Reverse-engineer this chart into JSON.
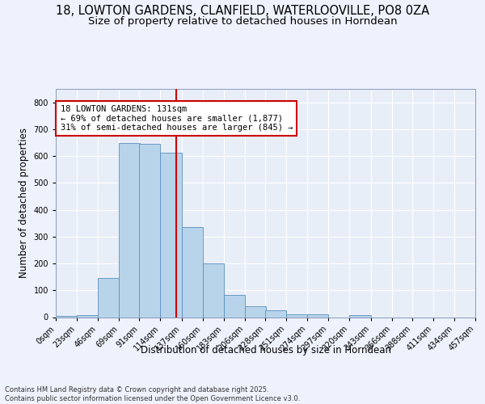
{
  "title_line1": "18, LOWTON GARDENS, CLANFIELD, WATERLOOVILLE, PO8 0ZA",
  "title_line2": "Size of property relative to detached houses in Horndean",
  "xlabel": "Distribution of detached houses by size in Horndean",
  "ylabel": "Number of detached properties",
  "bin_labels": [
    "0sqm",
    "23sqm",
    "46sqm",
    "69sqm",
    "91sqm",
    "114sqm",
    "137sqm",
    "160sqm",
    "183sqm",
    "206sqm",
    "228sqm",
    "251sqm",
    "274sqm",
    "297sqm",
    "320sqm",
    "343sqm",
    "366sqm",
    "388sqm",
    "411sqm",
    "434sqm",
    "457sqm"
  ],
  "bin_edges": [
    0,
    23,
    46,
    69,
    91,
    114,
    137,
    160,
    183,
    206,
    228,
    251,
    274,
    297,
    320,
    343,
    366,
    388,
    411,
    434,
    457
  ],
  "bar_heights": [
    6,
    8,
    145,
    648,
    645,
    612,
    335,
    200,
    84,
    40,
    25,
    10,
    12,
    0,
    8,
    0,
    0,
    0,
    0,
    0,
    4
  ],
  "bar_color": "#b8d4ea",
  "bar_edge_color": "#5a8fc0",
  "bg_color": "#e8eef8",
  "grid_color": "#ffffff",
  "annotation_text": "18 LOWTON GARDENS: 131sqm\n← 69% of detached houses are smaller (1,877)\n31% of semi-detached houses are larger (845) →",
  "annotation_box_color": "#ffffff",
  "annotation_box_edge": "#cc0000",
  "vline_color": "#cc0000",
  "vline_x": 131,
  "ylim": [
    0,
    850
  ],
  "yticks": [
    0,
    100,
    200,
    300,
    400,
    500,
    600,
    700,
    800
  ],
  "footnote": "Contains HM Land Registry data © Crown copyright and database right 2025.\nContains public sector information licensed under the Open Government Licence v3.0.",
  "title_fontsize": 10.5,
  "subtitle_fontsize": 9.5,
  "axis_label_fontsize": 8.5,
  "tick_fontsize": 7,
  "annotation_fontsize": 7.5,
  "footnote_fontsize": 6
}
